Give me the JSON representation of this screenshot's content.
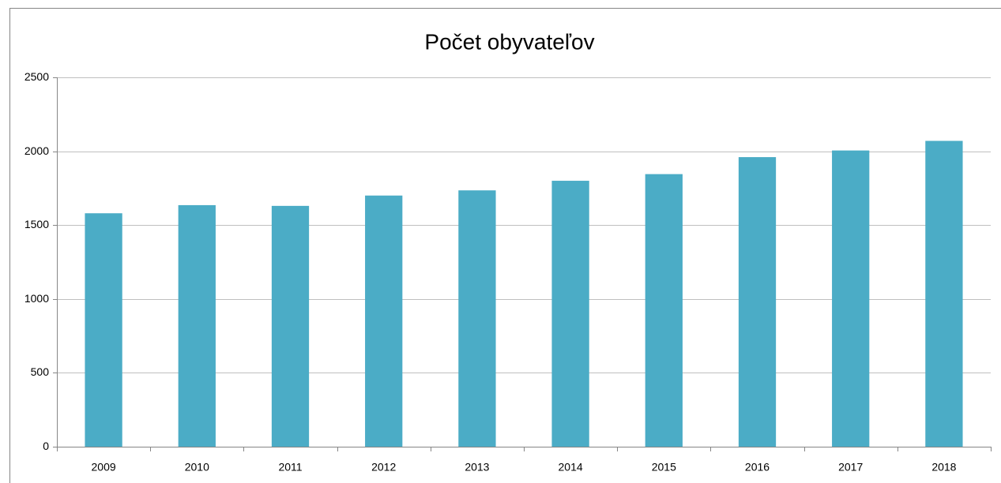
{
  "chart_data": {
    "type": "bar",
    "title": "Počet obyvateľov",
    "categories": [
      "2009",
      "2010",
      "2011",
      "2012",
      "2013",
      "2014",
      "2015",
      "2016",
      "2017",
      "2018"
    ],
    "values": [
      1580,
      1635,
      1630,
      1700,
      1735,
      1800,
      1845,
      1960,
      2005,
      2070
    ],
    "color": "#4bacc6",
    "ylim": [
      0,
      2500
    ],
    "yticks": [
      0,
      500,
      1000,
      1500,
      2000,
      2500
    ],
    "grid": true
  }
}
